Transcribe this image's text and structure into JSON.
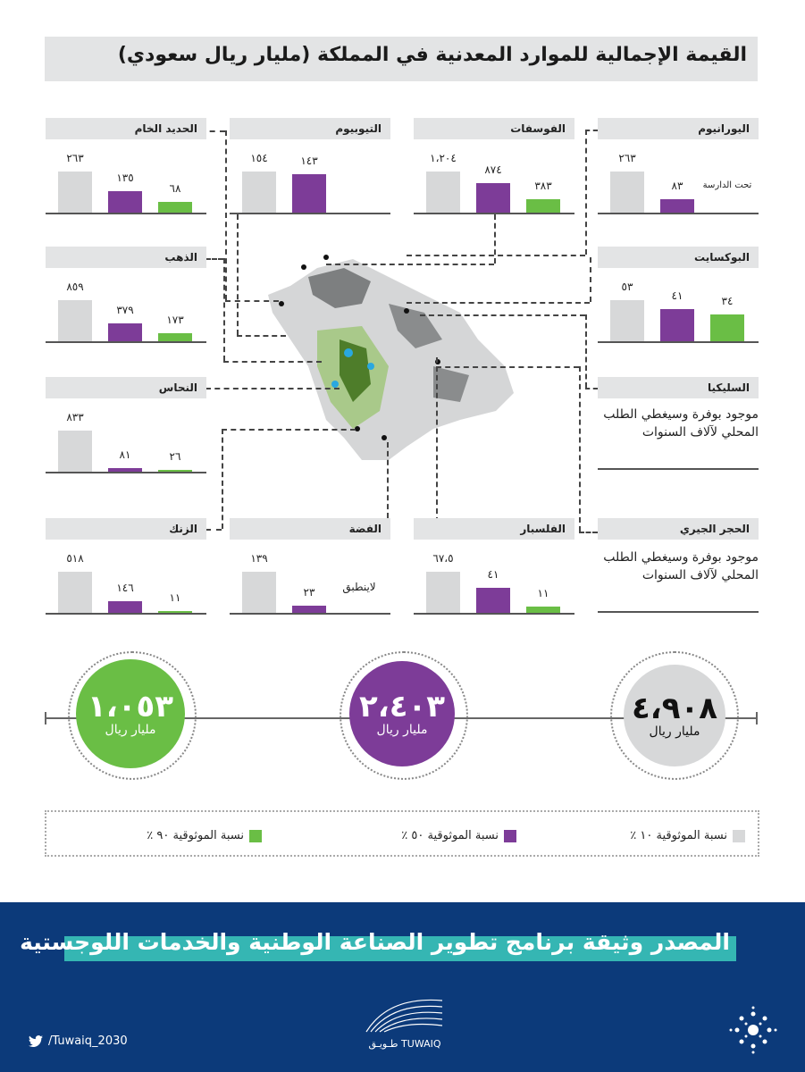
{
  "title": "القيمة الإجمالية للموارد المعدنية في المملكة (مليار ريال سعودي)",
  "colors": {
    "confidence_10": "#d7d8d9",
    "confidence_50": "#7d3c98",
    "confidence_90": "#6abe45"
  },
  "chart_data": {
    "type": "bar",
    "title": "القيمة الإجمالية للموارد المعدنية في المملكة (مليار ريال سعودي)",
    "series_names": [
      "نسبة الموثوقية ١٠ ٪",
      "نسبة الموثوقية ٥٠ ٪",
      "نسبة الموثوقية ٩٠ ٪"
    ],
    "panels": [
      {
        "name": "اليورانيوم",
        "values": [
          263,
          83,
          null
        ],
        "labels": [
          "٢٦٣",
          "٨٣",
          "تحت الدارسة"
        ]
      },
      {
        "name": "الفوسفات",
        "values": [
          1204,
          874,
          383
        ],
        "labels": [
          "١،٢٠٤",
          "٨٧٤",
          "٣٨٣"
        ]
      },
      {
        "name": "التيوبيوم",
        "values": [
          154,
          143,
          null
        ],
        "labels": [
          "١٥٤",
          "١٤٣",
          ""
        ]
      },
      {
        "name": "الحديد الخام",
        "values": [
          263,
          135,
          68
        ],
        "labels": [
          "٢٦٣",
          "١٣٥",
          "٦٨"
        ]
      },
      {
        "name": "البوكسايت",
        "values": [
          53,
          41,
          34
        ],
        "labels": [
          "٥٣",
          "٤١",
          "٣٤"
        ]
      },
      {
        "name": "الذهب",
        "values": [
          859,
          379,
          173
        ],
        "labels": [
          "٨٥٩",
          "٣٧٩",
          "١٧٣"
        ]
      },
      {
        "name": "النحاس",
        "values": [
          833,
          81,
          26
        ],
        "labels": [
          "٨٣٣",
          "٨١",
          "٢٦"
        ]
      },
      {
        "name": "الزنك",
        "values": [
          518,
          146,
          11
        ],
        "labels": [
          "٥١٨",
          "١٤٦",
          "١١"
        ]
      },
      {
        "name": "الفضة",
        "values": [
          139,
          23,
          null
        ],
        "labels": [
          "١٣٩",
          "٢٣",
          "لاينطبق"
        ]
      },
      {
        "name": "الفلسبار",
        "values": [
          67.5,
          41,
          11
        ],
        "labels": [
          "٦٧،٥",
          "٤١",
          "١١"
        ]
      }
    ],
    "text_panels": [
      {
        "name": "السليكيا",
        "text": "موجود بوفرة وسيغطي الطلب المحلي لآلاف السنوات"
      },
      {
        "name": "الحجر الجيري",
        "text": "موجود بوفرة وسيغطي الطلب المحلي لآلاف السنوات"
      }
    ],
    "totals": [
      {
        "value": 4908,
        "label": "٤،٩٠٨",
        "unit": "مليار ريال"
      },
      {
        "value": 2403,
        "label": "٢،٤٠٣",
        "unit": "مليار ريال"
      },
      {
        "value": 1053,
        "label": "١،٠٥٣",
        "unit": "مليار ريال"
      }
    ]
  },
  "legend": [
    {
      "label": "نسبة الموثوقية ١٠ ٪"
    },
    {
      "label": "نسبة الموثوقية ٥٠ ٪"
    },
    {
      "label": "نسبة الموثوقية ٩٠ ٪"
    }
  ],
  "footer": {
    "source": "المصدر وثيقة برنامج تطوير الصناعة الوطنية والخدمات اللوجستية",
    "twitter": "/Tuwaiq_2030",
    "logo_text": "طـويـق TUWAIQ"
  }
}
